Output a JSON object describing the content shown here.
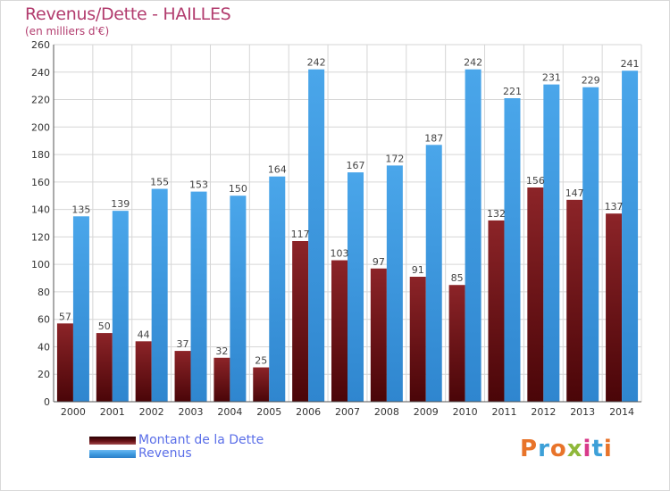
{
  "title": "Revenus/Dette - HAILLES",
  "subtitle": "(en milliers d'€)",
  "colors": {
    "dette": "#7a1a1e",
    "revenus": "#3f9be0",
    "title": "#b23c6e"
  },
  "legend": [
    {
      "label": "Montant de la Dette",
      "color": "#5c0f12"
    },
    {
      "label": "Revenus",
      "color": "#3f9be0"
    }
  ],
  "logo": {
    "text": "Proxiti"
  },
  "chart_data": {
    "type": "bar",
    "title": "Revenus/Dette - HAILLES",
    "subtitle": "(en milliers d'€)",
    "categories": [
      "2000",
      "2001",
      "2002",
      "2003",
      "2004",
      "2005",
      "2006",
      "2007",
      "2008",
      "2009",
      "2010",
      "2011",
      "2012",
      "2013",
      "2014"
    ],
    "series": [
      {
        "name": "Montant de la Dette",
        "values": [
          57,
          50,
          44,
          37,
          32,
          25,
          117,
          103,
          97,
          91,
          85,
          132,
          156,
          147,
          137
        ]
      },
      {
        "name": "Revenus",
        "values": [
          135,
          139,
          155,
          153,
          150,
          164,
          242,
          167,
          172,
          187,
          242,
          221,
          231,
          229,
          241
        ]
      }
    ],
    "ylim": [
      0,
      260
    ],
    "yticks": [
      0,
      20,
      40,
      60,
      80,
      100,
      120,
      140,
      160,
      180,
      200,
      220,
      240,
      260
    ],
    "grid": true,
    "legend_position": "bottom-left"
  }
}
